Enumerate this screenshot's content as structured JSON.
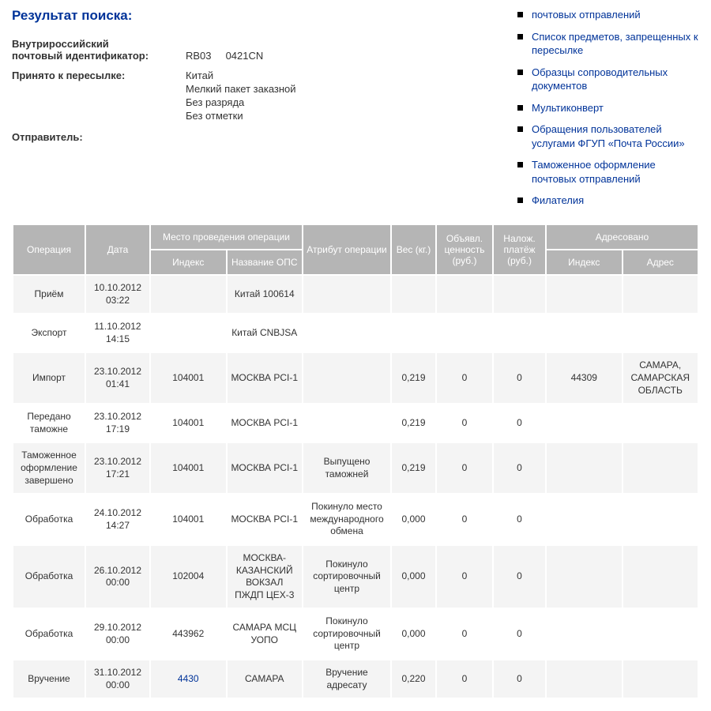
{
  "title": "Результат поиска:",
  "info": {
    "id_label_line1": "Внутрироссийский",
    "id_label_line2": "почтовый идентификатор:",
    "id_value": "RB03     0421CN",
    "accepted_label": "Принято к пересылке:",
    "accepted_lines": [
      "Китай",
      "Мелкий пакет заказной",
      "Без разряда",
      "Без отметки"
    ],
    "sender_label": "Отправитель:"
  },
  "sidebar": {
    "items": [
      "почтовых отправлений",
      "Список предметов, запрещенных к пересылке",
      "Образцы сопроводительных документов",
      "Мультиконверт",
      "Обращения пользователей услугами ФГУП «Почта России»",
      "Таможенное оформление почтовых отправлений",
      "Филателия"
    ]
  },
  "table": {
    "headers": {
      "operation": "Операция",
      "date": "Дата",
      "place_group": "Место проведения операции",
      "index": "Индекс",
      "ops_name": "Название ОПС",
      "attr": "Атрибут операции",
      "weight": "Вес (кг.)",
      "declared": "Объявл. ценность (руб.)",
      "cod": "Налож. платёж (руб.)",
      "addressed_group": "Адресовано",
      "addr_index": "Индекс",
      "addr": "Адрес"
    },
    "rows": [
      {
        "op": "Приём",
        "date": "10.10.2012 03:22",
        "idx": "",
        "ops": "Китай 100614",
        "attr": "",
        "wt": "",
        "val": "",
        "cod": "",
        "aidx": "",
        "adr": ""
      },
      {
        "op": "Экспорт",
        "date": "11.10.2012 14:15",
        "idx": "",
        "ops": "Китай CNBJSA",
        "attr": "",
        "wt": "",
        "val": "",
        "cod": "",
        "aidx": "",
        "adr": ""
      },
      {
        "op": "Импорт",
        "date": "23.10.2012 01:41",
        "idx": "104001",
        "ops": "МОСКВА PCI-1",
        "attr": "",
        "wt": "0,219",
        "val": "0",
        "cod": "0",
        "aidx": "44309",
        "adr": "САМАРА, САМАРСКАЯ ОБЛАСТЬ"
      },
      {
        "op": "Передано таможне",
        "date": "23.10.2012 17:19",
        "idx": "104001",
        "ops": "МОСКВА PCI-1",
        "attr": "",
        "wt": "0,219",
        "val": "0",
        "cod": "0",
        "aidx": "",
        "adr": ""
      },
      {
        "op": "Таможенное оформление завершено",
        "date": "23.10.2012 17:21",
        "idx": "104001",
        "ops": "МОСКВА PCI-1",
        "attr": "Выпущено таможней",
        "wt": "0,219",
        "val": "0",
        "cod": "0",
        "aidx": "",
        "adr": ""
      },
      {
        "op": "Обработка",
        "date": "24.10.2012 14:27",
        "idx": "104001",
        "ops": "МОСКВА PCI-1",
        "attr": "Покинуло место международного обмена",
        "wt": "0,000",
        "val": "0",
        "cod": "0",
        "aidx": "",
        "adr": ""
      },
      {
        "op": "Обработка",
        "date": "26.10.2012 00:00",
        "idx": "102004",
        "ops": "МОСКВА-КАЗАНСКИЙ ВОКЗАЛ ПЖДП ЦЕХ-3",
        "attr": "Покинуло сортировочный центр",
        "wt": "0,000",
        "val": "0",
        "cod": "0",
        "aidx": "",
        "adr": ""
      },
      {
        "op": "Обработка",
        "date": "29.10.2012 00:00",
        "idx": "443962",
        "ops": "САМАРА МСЦ УОПО",
        "attr": "Покинуло сортировочный центр",
        "wt": "0,000",
        "val": "0",
        "cod": "0",
        "aidx": "",
        "adr": ""
      },
      {
        "op": "Вручение",
        "date": "31.10.2012 00:00",
        "idx": "4430",
        "idx_link": true,
        "ops": "САМАРА",
        "attr": "Вручение адресату",
        "wt": "0,220",
        "val": "0",
        "cod": "0",
        "aidx": "",
        "adr": ""
      }
    ]
  }
}
